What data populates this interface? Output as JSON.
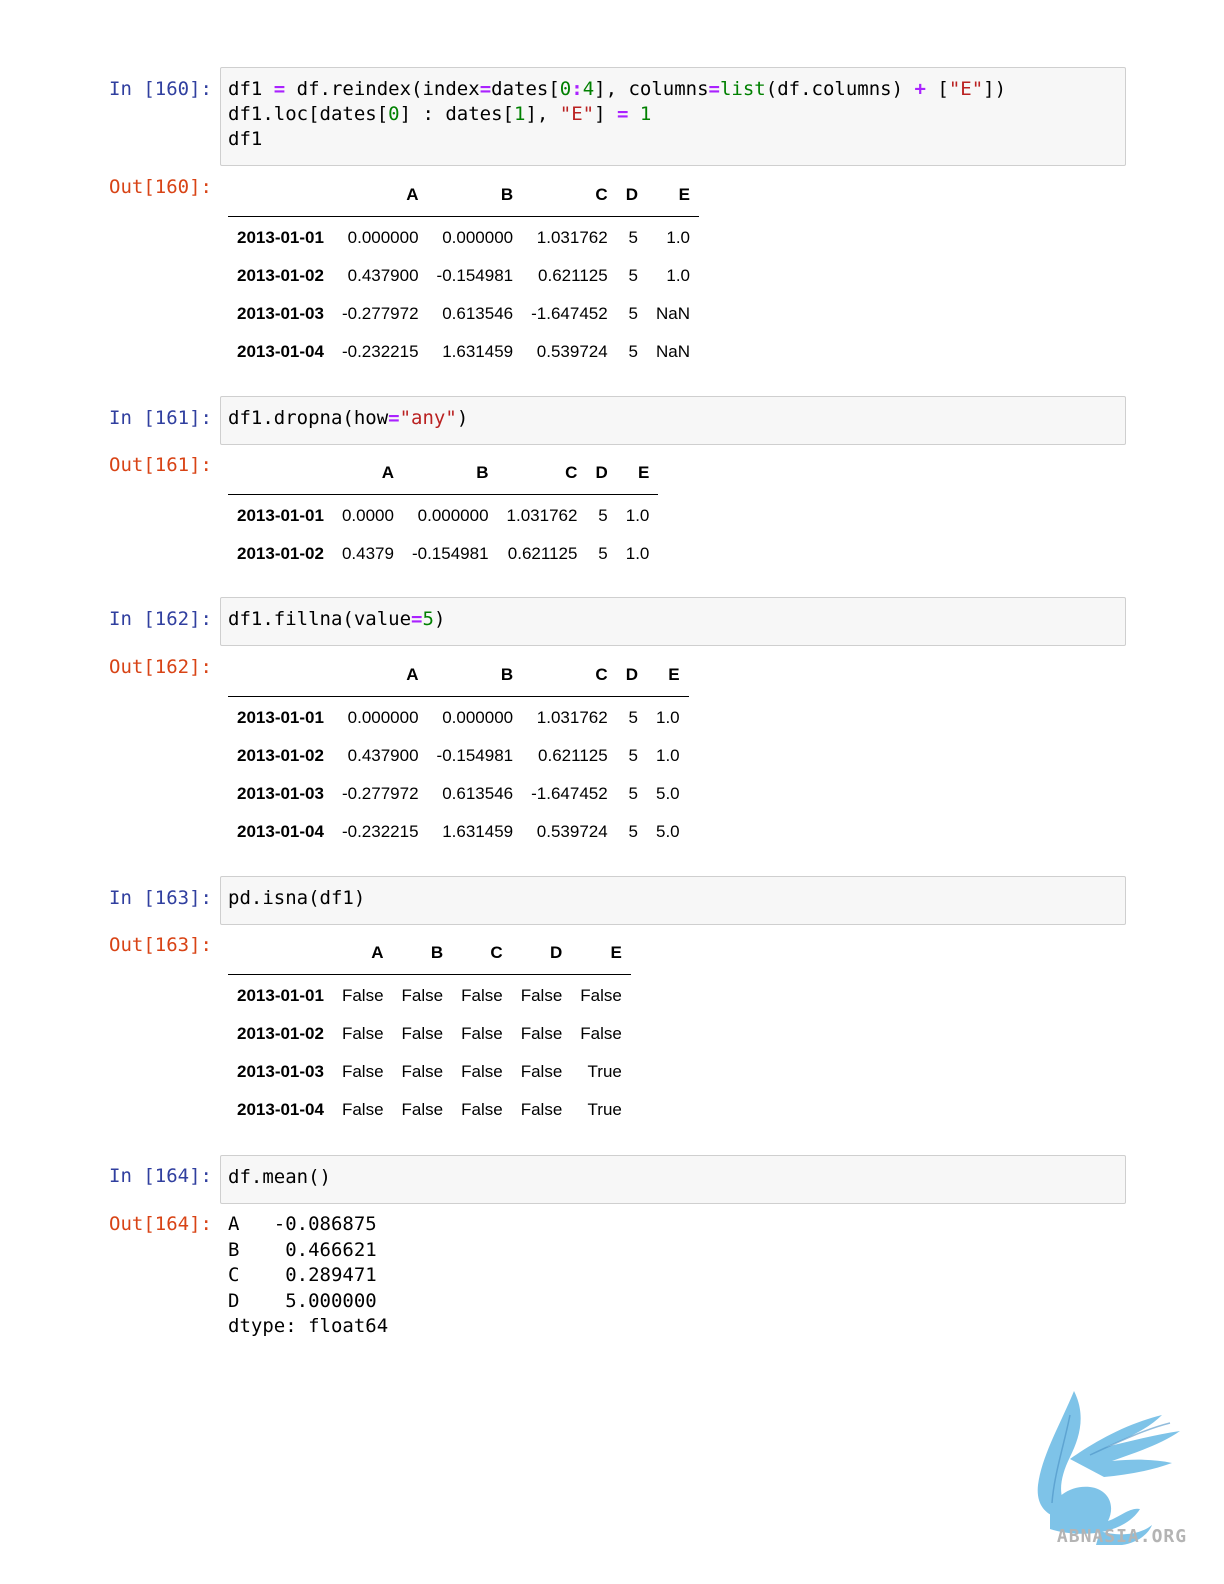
{
  "cells": [
    {
      "in_prompt": "In [160]:",
      "out_prompt": "Out[160]:",
      "code_lines": [
        [
          [
            "df1 ",
            ""
          ],
          [
            "=",
            "o"
          ],
          [
            " df.reindex(index",
            ""
          ],
          [
            "=",
            "o"
          ],
          [
            "dates[",
            ""
          ],
          [
            "0",
            "n"
          ],
          [
            ":",
            "o"
          ],
          [
            "4",
            "n"
          ],
          [
            "], columns",
            ""
          ],
          [
            "=",
            "o"
          ],
          [
            "list",
            "b"
          ],
          [
            "(df.columns) ",
            ""
          ],
          [
            "+",
            "o"
          ],
          [
            " [",
            ""
          ],
          [
            "\"E\"",
            "s"
          ],
          [
            "])",
            ""
          ]
        ],
        [
          [
            "df1.loc[dates[",
            ""
          ],
          [
            "0",
            "n"
          ],
          [
            "] : dates[",
            ""
          ],
          [
            "1",
            "n"
          ],
          [
            "], ",
            ""
          ],
          [
            "\"E\"",
            "s"
          ],
          [
            "] ",
            ""
          ],
          [
            "=",
            "o"
          ],
          [
            " ",
            ""
          ],
          [
            "1",
            "n"
          ]
        ],
        [
          [
            "df1",
            ""
          ]
        ]
      ],
      "table": {
        "columns": [
          "",
          "A",
          "B",
          "C",
          "D",
          "E"
        ],
        "rows": [
          [
            "2013-01-01",
            "0.000000",
            "0.000000",
            "1.031762",
            "5",
            "1.0"
          ],
          [
            "2013-01-02",
            "0.437900",
            "-0.154981",
            "0.621125",
            "5",
            "1.0"
          ],
          [
            "2013-01-03",
            "-0.277972",
            "0.613546",
            "-1.647452",
            "5",
            "NaN"
          ],
          [
            "2013-01-04",
            "-0.232215",
            "1.631459",
            "0.539724",
            "5",
            "NaN"
          ]
        ]
      }
    },
    {
      "in_prompt": "In [161]:",
      "out_prompt": "Out[161]:",
      "code_lines": [
        [
          [
            "df1.dropna(how",
            ""
          ],
          [
            "=",
            "o"
          ],
          [
            "\"any\"",
            "s"
          ],
          [
            ")",
            ""
          ]
        ]
      ],
      "table": {
        "columns": [
          "",
          "A",
          "B",
          "C",
          "D",
          "E"
        ],
        "rows": [
          [
            "2013-01-01",
            "0.0000",
            "0.000000",
            "1.031762",
            "5",
            "1.0"
          ],
          [
            "2013-01-02",
            "0.4379",
            "-0.154981",
            "0.621125",
            "5",
            "1.0"
          ]
        ]
      }
    },
    {
      "in_prompt": "In [162]:",
      "out_prompt": "Out[162]:",
      "code_lines": [
        [
          [
            "df1.fillna(value",
            ""
          ],
          [
            "=",
            "o"
          ],
          [
            "5",
            "n"
          ],
          [
            ")",
            ""
          ]
        ]
      ],
      "table": {
        "columns": [
          "",
          "A",
          "B",
          "C",
          "D",
          "E"
        ],
        "rows": [
          [
            "2013-01-01",
            "0.000000",
            "0.000000",
            "1.031762",
            "5",
            "1.0"
          ],
          [
            "2013-01-02",
            "0.437900",
            "-0.154981",
            "0.621125",
            "5",
            "1.0"
          ],
          [
            "2013-01-03",
            "-0.277972",
            "0.613546",
            "-1.647452",
            "5",
            "5.0"
          ],
          [
            "2013-01-04",
            "-0.232215",
            "1.631459",
            "0.539724",
            "5",
            "5.0"
          ]
        ]
      }
    },
    {
      "in_prompt": "In [163]:",
      "out_prompt": "Out[163]:",
      "code_lines": [
        [
          [
            "pd.isna(df1)",
            ""
          ]
        ]
      ],
      "table": {
        "columns": [
          "",
          "A",
          "B",
          "C",
          "D",
          "E"
        ],
        "rows": [
          [
            "2013-01-01",
            "False",
            "False",
            "False",
            "False",
            "False"
          ],
          [
            "2013-01-02",
            "False",
            "False",
            "False",
            "False",
            "False"
          ],
          [
            "2013-01-03",
            "False",
            "False",
            "False",
            "False",
            "True"
          ],
          [
            "2013-01-04",
            "False",
            "False",
            "False",
            "False",
            "True"
          ]
        ]
      }
    },
    {
      "in_prompt": "In [164]:",
      "out_prompt": "Out[164]:",
      "code_lines": [
        [
          [
            "df.mean()",
            ""
          ]
        ]
      ],
      "text_output": "A   -0.086875\nB    0.466621\nC    0.289471\nD    5.000000\ndtype: float64"
    }
  ],
  "watermark": {
    "text": "ABNASIA.ORG",
    "icon": "griffin-logo-icon",
    "color": "#7ec3e8"
  }
}
